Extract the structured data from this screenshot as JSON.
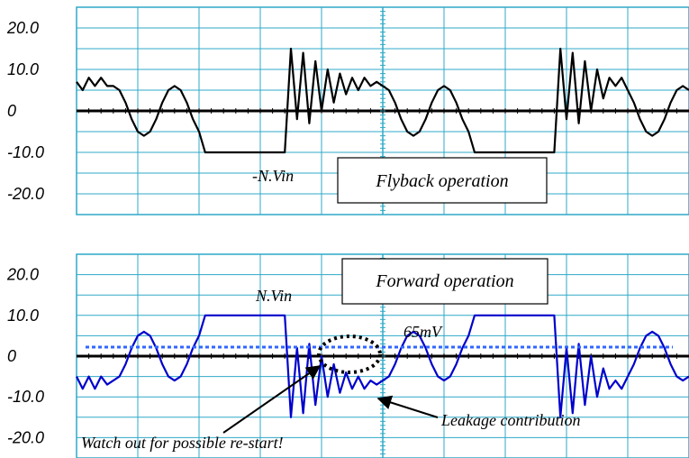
{
  "chart_data": [
    {
      "type": "line",
      "title": "Flyback operation",
      "ylim": [
        -25,
        25
      ],
      "y_ticks": [
        "20.0",
        "10.0",
        "0",
        "-10.0",
        "-20.0"
      ],
      "grid": true,
      "annotations": [
        "-N.Vin"
      ],
      "series": [
        {
          "color": "#000000",
          "x": [
            0,
            1,
            2,
            3,
            4,
            5,
            6,
            7,
            8,
            9,
            10,
            11,
            12,
            13,
            14,
            15,
            16,
            17,
            18,
            19,
            20,
            21,
            22,
            23,
            24,
            25,
            26,
            27,
            28,
            29,
            30,
            31,
            32,
            33,
            34,
            35,
            36,
            37,
            38,
            39,
            40,
            41,
            42,
            43,
            44,
            45,
            46,
            47,
            48,
            49,
            50,
            51,
            52,
            53,
            54,
            55,
            56,
            57,
            58,
            59,
            60,
            61,
            62,
            63,
            64,
            65,
            66,
            67,
            68,
            69,
            70,
            71,
            72,
            73,
            74,
            75,
            76,
            77,
            78,
            79,
            80,
            81,
            82,
            83,
            84,
            85,
            86,
            87,
            88,
            89,
            90,
            91,
            92,
            93,
            94,
            95,
            96,
            97,
            98,
            99,
            100
          ],
          "y": [
            7,
            5,
            8,
            6,
            8,
            6,
            6,
            5,
            2,
            -2,
            -5,
            -6,
            -5,
            -2,
            2,
            5,
            6,
            5,
            2,
            -2,
            -5,
            -10,
            -10,
            -10,
            -10,
            -10,
            -10,
            -10,
            -10,
            -10,
            -10,
            -10,
            -10,
            -10,
            -10,
            15,
            -2,
            14,
            -3,
            12,
            0,
            10,
            2,
            9,
            4,
            8,
            5,
            8,
            6,
            7,
            6,
            5,
            2,
            -2,
            -5,
            -6,
            -5,
            -2,
            2,
            5,
            6,
            5,
            2,
            -2,
            -5,
            -10,
            -10,
            -10,
            -10,
            -10,
            -10,
            -10,
            -10,
            -10,
            -10,
            -10,
            -10,
            -10,
            -10,
            15,
            -2,
            14,
            -3,
            12,
            0,
            10,
            3,
            8,
            6,
            8,
            5,
            2,
            -2,
            -5,
            -6,
            -5,
            -2,
            2,
            5,
            6,
            5
          ]
        }
      ]
    },
    {
      "type": "line",
      "title": "Forward operation",
      "ylim": [
        -25,
        25
      ],
      "y_ticks": [
        "20.0",
        "10.0",
        "0",
        "-10.0",
        "-20.0"
      ],
      "grid": true,
      "annotations": [
        "N.Vin",
        "65mV",
        "Leakage contribution",
        "Watch out for possible re-start!"
      ],
      "series": [
        {
          "color": "#0000cc",
          "x": [
            0,
            1,
            2,
            3,
            4,
            5,
            6,
            7,
            8,
            9,
            10,
            11,
            12,
            13,
            14,
            15,
            16,
            17,
            18,
            19,
            20,
            21,
            22,
            23,
            24,
            25,
            26,
            27,
            28,
            29,
            30,
            31,
            32,
            33,
            34,
            35,
            36,
            37,
            38,
            39,
            40,
            41,
            42,
            43,
            44,
            45,
            46,
            47,
            48,
            49,
            50,
            51,
            52,
            53,
            54,
            55,
            56,
            57,
            58,
            59,
            60,
            61,
            62,
            63,
            64,
            65,
            66,
            67,
            68,
            69,
            70,
            71,
            72,
            73,
            74,
            75,
            76,
            77,
            78,
            79,
            80,
            81,
            82,
            83,
            84,
            85,
            86,
            87,
            88,
            89,
            90,
            91,
            92,
            93,
            94,
            95,
            96,
            97,
            98,
            99,
            100
          ],
          "y": [
            -5,
            -8,
            -5,
            -8,
            -5,
            -7,
            -6,
            -5,
            -2,
            2,
            5,
            6,
            5,
            2,
            -2,
            -5,
            -6,
            -5,
            -2,
            2,
            5,
            10,
            10,
            10,
            10,
            10,
            10,
            10,
            10,
            10,
            10,
            10,
            10,
            10,
            10,
            -15,
            2,
            -14,
            3,
            -12,
            0,
            -10,
            -2,
            -9,
            -4,
            -8,
            -5,
            -8,
            -6,
            -7,
            -6,
            -5,
            -2,
            2,
            5,
            6,
            5,
            2,
            -2,
            -5,
            -6,
            -5,
            -2,
            2,
            5,
            10,
            10,
            10,
            10,
            10,
            10,
            10,
            10,
            10,
            10,
            10,
            10,
            10,
            10,
            -15,
            2,
            -14,
            3,
            -12,
            0,
            -10,
            -3,
            -8,
            -6,
            -8,
            -5,
            -2,
            2,
            5,
            6,
            5,
            2,
            -2,
            -5,
            -6,
            -5
          ]
        },
        {
          "name": "65mV",
          "color": "#3366ff",
          "style": "dotted",
          "level": 2.2
        }
      ]
    }
  ]
}
